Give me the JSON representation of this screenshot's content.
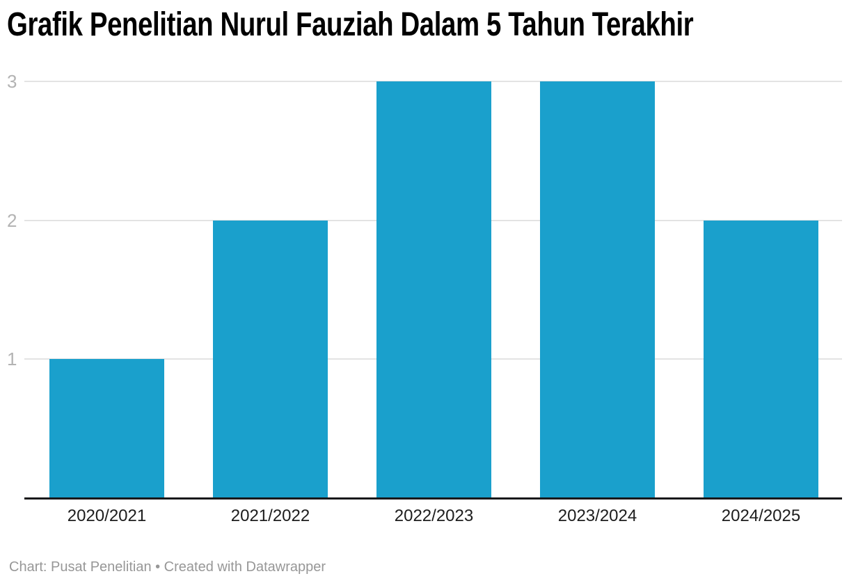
{
  "colors": {
    "bar": "#1aa0cc",
    "grid": "#e3e3e3",
    "axis_line": "#18181a",
    "y_tick": "#b3b3b3",
    "x_tick": "#1d1d1d",
    "footer_text": "#979797",
    "title": "#000000",
    "background": "#ffffff"
  },
  "chart_data": {
    "type": "bar",
    "title": "Grafik Penelitian Nurul Fauziah Dalam 5 Tahun Terakhir",
    "categories": [
      "2020/2021",
      "2021/2022",
      "2022/2023",
      "2023/2024",
      "2024/2025"
    ],
    "values": [
      1,
      2,
      3,
      3,
      2
    ],
    "xlabel": "",
    "ylabel": "",
    "ylim": [
      0,
      3
    ],
    "yticks": [
      1,
      2,
      3
    ],
    "grid": true,
    "legend": false,
    "source_note": "Chart: Pusat Penelitian • Created with Datawrapper"
  }
}
